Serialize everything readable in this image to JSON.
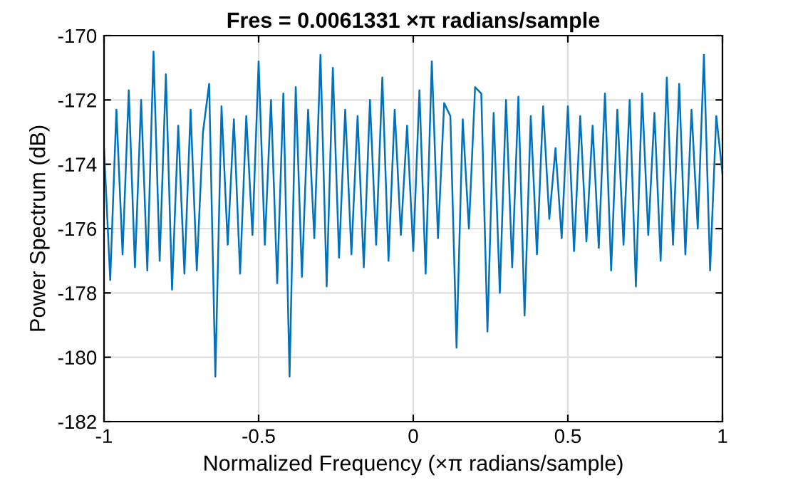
{
  "chart_data": {
    "type": "line",
    "title": "Fres = 0.0061331 ×π radians/sample",
    "xlabel": "Normalized Frequency (×π radians/sample)",
    "ylabel": "Power Spectrum (dB)",
    "x": [
      -1.0,
      -0.98,
      -0.96,
      -0.94,
      -0.92,
      -0.9,
      -0.88,
      -0.86,
      -0.84,
      -0.82,
      -0.8,
      -0.78,
      -0.76,
      -0.74,
      -0.72,
      -0.7,
      -0.68,
      -0.66,
      -0.64,
      -0.62,
      -0.6,
      -0.58,
      -0.56,
      -0.54,
      -0.52,
      -0.5,
      -0.48,
      -0.46,
      -0.44,
      -0.42,
      -0.4,
      -0.38,
      -0.36,
      -0.34,
      -0.32,
      -0.3,
      -0.28,
      -0.26,
      -0.24,
      -0.22,
      -0.2,
      -0.18,
      -0.16,
      -0.14,
      -0.12,
      -0.1,
      -0.08,
      -0.06,
      -0.04,
      -0.02,
      0.0,
      0.02,
      0.04,
      0.06,
      0.08,
      0.1,
      0.12,
      0.14,
      0.16,
      0.18,
      0.2,
      0.22,
      0.24,
      0.26,
      0.28,
      0.3,
      0.32,
      0.34,
      0.36,
      0.38,
      0.4,
      0.42,
      0.44,
      0.46,
      0.48,
      0.5,
      0.52,
      0.54,
      0.56,
      0.58,
      0.6,
      0.62,
      0.64,
      0.66,
      0.68,
      0.7,
      0.72,
      0.74,
      0.76,
      0.78,
      0.8,
      0.82,
      0.84,
      0.86,
      0.88,
      0.9,
      0.92,
      0.94,
      0.96,
      0.98,
      1.0
    ],
    "series": [
      {
        "color": "#0072bd",
        "values": [
          -173.5,
          -177.6,
          -172.3,
          -176.8,
          -171.7,
          -177.2,
          -172.0,
          -177.3,
          -170.5,
          -177.0,
          -171.2,
          -177.9,
          -172.8,
          -177.4,
          -172.3,
          -177.3,
          -173.0,
          -171.5,
          -180.6,
          -172.2,
          -176.5,
          -172.6,
          -177.4,
          -172.5,
          -176.2,
          -170.8,
          -176.5,
          -172.0,
          -177.7,
          -171.8,
          -180.6,
          -171.6,
          -177.5,
          -172.3,
          -176.3,
          -170.6,
          -177.8,
          -171.0,
          -176.9,
          -172.3,
          -176.8,
          -172.5,
          -177.2,
          -172.0,
          -176.5,
          -171.3,
          -177.0,
          -172.3,
          -176.2,
          -172.8,
          -176.7,
          -171.7,
          -177.4,
          -170.8,
          -176.3,
          -172.1,
          -172.5,
          -179.7,
          -172.6,
          -176.0,
          -171.6,
          -171.8,
          -179.2,
          -172.4,
          -178.0,
          -172.0,
          -177.2,
          -171.9,
          -178.7,
          -172.5,
          -176.8,
          -172.2,
          -175.7,
          -173.5,
          -176.3,
          -172.2,
          -176.7,
          -172.5,
          -176.4,
          -172.8,
          -176.6,
          -171.8,
          -177.3,
          -172.3,
          -176.5,
          -172.0,
          -177.8,
          -171.8,
          -176.2,
          -172.4,
          -177.0,
          -171.3,
          -176.5,
          -171.5,
          -176.8,
          -172.3,
          -176.0,
          -170.6,
          -177.3,
          -172.5,
          -174.3
        ]
      }
    ],
    "xlim": [
      -1,
      1
    ],
    "ylim": [
      -182,
      -170
    ],
    "xticks": [
      -1,
      -0.5,
      0,
      0.5,
      1
    ],
    "yticks": [
      -182,
      -180,
      -178,
      -176,
      -174,
      -172,
      -170
    ],
    "grid": true,
    "legend": false
  }
}
